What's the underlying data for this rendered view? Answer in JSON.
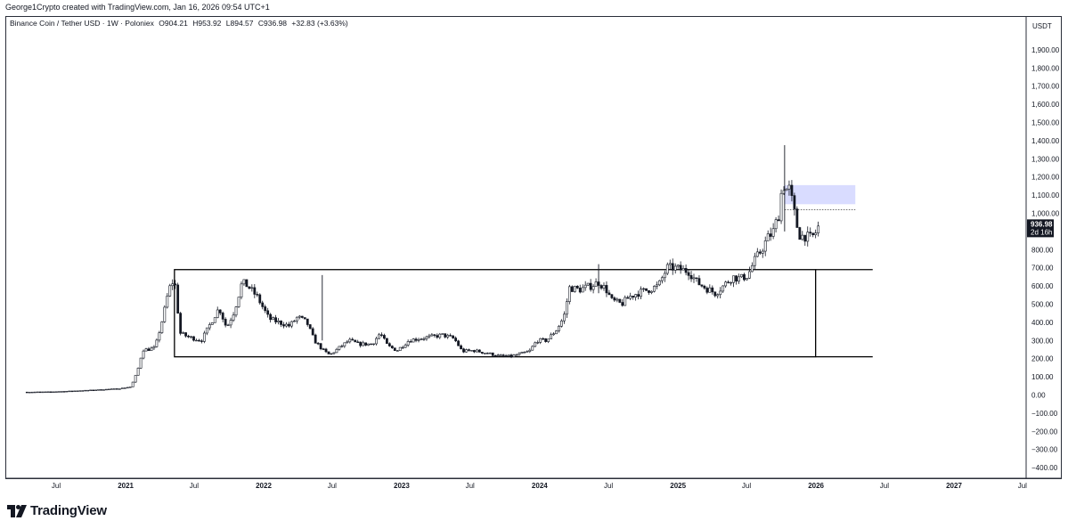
{
  "credit": "George1Crypto created with TradingView.com, Jan 16, 2026 09:54 UTC+1",
  "legend": {
    "symbol": "Binance Coin / Tether USD · 1W · Poloniex",
    "open": "O904.21",
    "high": "H953.92",
    "low": "L894.57",
    "close": "C936.98",
    "change": "+32.83 (+3.63%)"
  },
  "currency_label": "USDT",
  "price_badge": {
    "value": "936.98",
    "countdown": "2d 16h"
  },
  "brand": "TradingView",
  "colors": {
    "candle": "#131722",
    "zone": "#d9dcff",
    "grid_border": "#2a2e39"
  },
  "icons": [
    "tradingview-logo-icon"
  ],
  "chart_data": {
    "type": "candlestick",
    "title": "Binance Coin / Tether USD · 1W · Poloniex",
    "ylim": [
      -400,
      2000
    ],
    "yticks": [
      1900,
      1800,
      1700,
      1600,
      1500,
      1400,
      1300,
      1200,
      1100,
      1000,
      900,
      800,
      700,
      600,
      500,
      400,
      300,
      200,
      100,
      0,
      -100,
      -200,
      -300,
      -400
    ],
    "ytick_labels": [
      "1,900.00",
      "1,800.00",
      "1,700.00",
      "1,600.00",
      "1,500.00",
      "1,400.00",
      "1,300.00",
      "1,200.00",
      "1,100.00",
      "1,000.00",
      "900.00",
      "800.00",
      "700.00",
      "600.00",
      "500.00",
      "400.00",
      "300.00",
      "200.00",
      "100.00",
      "0.00",
      "−100.00",
      "−200.00",
      "−300.00",
      "−400.00"
    ],
    "xticks": [
      {
        "label": "Jul",
        "date": "2020-07-01",
        "bold": false
      },
      {
        "label": "2021",
        "date": "2021-01-01",
        "bold": true
      },
      {
        "label": "Jul",
        "date": "2021-07-01",
        "bold": false
      },
      {
        "label": "2022",
        "date": "2022-01-01",
        "bold": true
      },
      {
        "label": "Jul",
        "date": "2022-07-01",
        "bold": false
      },
      {
        "label": "2023",
        "date": "2023-01-01",
        "bold": true
      },
      {
        "label": "Jul",
        "date": "2023-07-01",
        "bold": false
      },
      {
        "label": "2024",
        "date": "2024-01-01",
        "bold": true
      },
      {
        "label": "Jul",
        "date": "2024-07-01",
        "bold": false
      },
      {
        "label": "2025",
        "date": "2025-01-01",
        "bold": true
      },
      {
        "label": "Jul",
        "date": "2025-07-01",
        "bold": false
      },
      {
        "label": "2026",
        "date": "2026-01-01",
        "bold": true
      },
      {
        "label": "Jul",
        "date": "2026-07-01",
        "bold": false
      },
      {
        "label": "2027",
        "date": "2027-01-01",
        "bold": true
      },
      {
        "label": "Jul",
        "date": "2027-07-01",
        "bold": false
      }
    ],
    "price_path": [
      [
        "2020-04-15",
        16
      ],
      [
        "2020-06-15",
        17
      ],
      [
        "2020-08-15",
        22
      ],
      [
        "2020-10-15",
        28
      ],
      [
        "2020-12-15",
        35
      ],
      [
        "2021-01-15",
        45
      ],
      [
        "2021-02-01",
        130
      ],
      [
        "2021-02-15",
        250
      ],
      [
        "2021-03-01",
        250
      ],
      [
        "2021-03-20",
        260
      ],
      [
        "2021-04-10",
        430
      ],
      [
        "2021-04-25",
        580
      ],
      [
        "2021-05-10",
        640
      ],
      [
        "2021-05-25",
        340
      ],
      [
        "2021-06-15",
        320
      ],
      [
        "2021-07-20",
        300
      ],
      [
        "2021-08-15",
        400
      ],
      [
        "2021-09-05",
        480
      ],
      [
        "2021-09-25",
        370
      ],
      [
        "2021-10-15",
        460
      ],
      [
        "2021-11-05",
        620
      ],
      [
        "2021-11-20",
        600
      ],
      [
        "2021-12-15",
        540
      ],
      [
        "2022-01-15",
        420
      ],
      [
        "2022-02-10",
        400
      ],
      [
        "2022-03-10",
        380
      ],
      [
        "2022-04-01",
        430
      ],
      [
        "2022-04-25",
        400
      ],
      [
        "2022-05-15",
        300
      ],
      [
        "2022-06-10",
        240
      ],
      [
        "2022-06-25",
        220
      ],
      [
        "2022-07-20",
        260
      ],
      [
        "2022-08-15",
        300
      ],
      [
        "2022-09-10",
        280
      ],
      [
        "2022-10-15",
        280
      ],
      [
        "2022-11-05",
        340
      ],
      [
        "2022-11-25",
        270
      ],
      [
        "2022-12-20",
        245
      ],
      [
        "2023-01-20",
        300
      ],
      [
        "2023-02-15",
        310
      ],
      [
        "2023-03-20",
        320
      ],
      [
        "2023-04-20",
        330
      ],
      [
        "2023-05-20",
        310
      ],
      [
        "2023-06-10",
        240
      ],
      [
        "2023-07-10",
        245
      ],
      [
        "2023-08-15",
        230
      ],
      [
        "2023-09-15",
        215
      ],
      [
        "2023-10-15",
        212
      ],
      [
        "2023-11-10",
        225
      ],
      [
        "2023-12-05",
        240
      ],
      [
        "2023-12-25",
        300
      ],
      [
        "2024-01-20",
        300
      ],
      [
        "2024-02-15",
        360
      ],
      [
        "2024-03-05",
        430
      ],
      [
        "2024-03-20",
        590
      ],
      [
        "2024-04-15",
        580
      ],
      [
        "2024-05-15",
        600
      ],
      [
        "2024-06-05",
        620
      ],
      [
        "2024-06-25",
        580
      ],
      [
        "2024-07-10",
        520
      ],
      [
        "2024-08-05",
        500
      ],
      [
        "2024-08-25",
        540
      ],
      [
        "2024-09-15",
        560
      ],
      [
        "2024-10-15",
        580
      ],
      [
        "2024-11-10",
        600
      ],
      [
        "2024-12-03",
        700
      ],
      [
        "2024-12-20",
        700
      ],
      [
        "2025-01-10",
        690
      ],
      [
        "2025-01-30",
        680
      ],
      [
        "2025-02-20",
        620
      ],
      [
        "2025-03-15",
        590
      ],
      [
        "2025-04-10",
        560
      ],
      [
        "2025-05-01",
        600
      ],
      [
        "2025-05-25",
        650
      ],
      [
        "2025-06-15",
        640
      ],
      [
        "2025-07-05",
        660
      ],
      [
        "2025-07-20",
        730
      ],
      [
        "2025-08-10",
        800
      ],
      [
        "2025-08-25",
        860
      ],
      [
        "2025-09-10",
        900
      ],
      [
        "2025-09-25",
        1000
      ],
      [
        "2025-10-05",
        1180
      ],
      [
        "2025-10-12",
        1120
      ],
      [
        "2025-10-20",
        1150
      ],
      [
        "2025-10-28",
        1080
      ],
      [
        "2025-11-05",
        1000
      ],
      [
        "2025-11-15",
        900
      ],
      [
        "2025-11-22",
        870
      ],
      [
        "2025-12-01",
        880
      ],
      [
        "2025-12-15",
        860
      ],
      [
        "2025-12-28",
        880
      ],
      [
        "2026-01-10",
        937
      ]
    ],
    "wicks": [
      {
        "date": "2022-06-05",
        "high": 660,
        "low": 300
      },
      {
        "date": "2025-10-10",
        "high": 1375,
        "low": 900
      },
      {
        "date": "2024-06-05",
        "high": 720,
        "low": 560
      }
    ],
    "last_price": 936.98,
    "annotations": [
      {
        "type": "rectangle",
        "label": "range box",
        "from": "2021-05-10",
        "to": "2025-12-31",
        "top": 690,
        "bottom": 210
      },
      {
        "type": "extended_lines",
        "from": "2025-12-31",
        "to": "2026-05-31",
        "levels": [
          690,
          210
        ]
      },
      {
        "type": "zone",
        "from": "2025-10-10",
        "to": "2026-04-15",
        "top": 1155,
        "bottom": 1050
      },
      {
        "type": "dotted_line",
        "from": "2025-10-10",
        "to": "2026-04-15",
        "level": 1020
      }
    ]
  }
}
